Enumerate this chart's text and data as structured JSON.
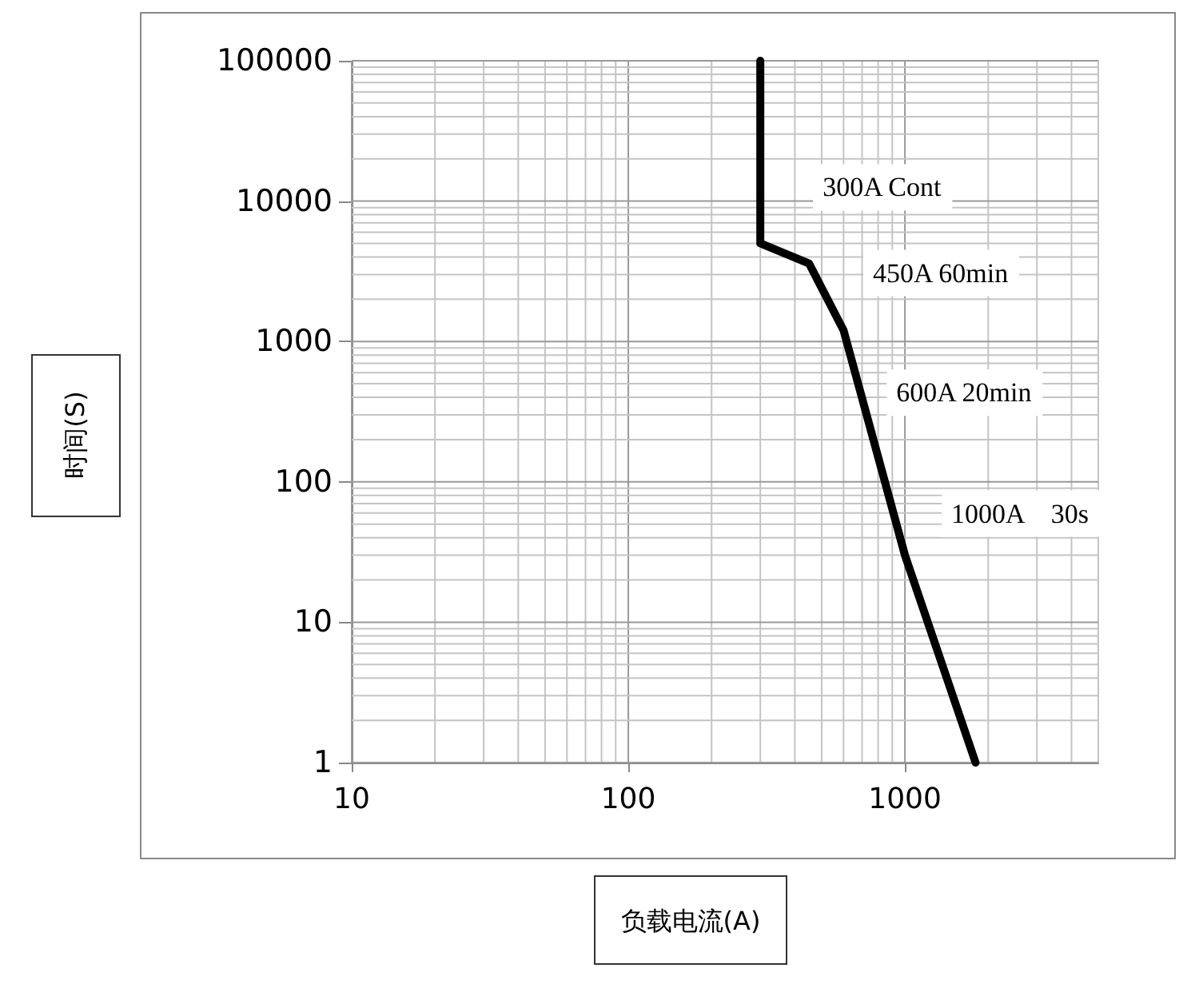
{
  "chart_data": {
    "type": "line",
    "xlabel": "负载电流(A)",
    "ylabel": "时间(S)",
    "x": [
      300,
      300,
      450,
      600,
      1000,
      1800
    ],
    "series": [
      {
        "color": "#000000",
        "values": [
          100000,
          5000,
          3600,
          1200,
          30,
          1
        ]
      }
    ],
    "xlim": [
      10,
      5000
    ],
    "ylim": [
      1,
      100000
    ],
    "xticks": [
      10,
      100,
      1000
    ],
    "yticks": [
      1,
      10,
      100,
      1000,
      10000,
      100000
    ],
    "log": "xy",
    "grid": true,
    "marker": "none",
    "line_style": "solid",
    "annotations": [
      {
        "text": "300A Cont",
        "x": 300,
        "y": 5000
      },
      {
        "text": "450A 60min",
        "x": 450,
        "y": 3600
      },
      {
        "text": "600A 20min",
        "x": 600,
        "y": 1200
      },
      {
        "text": "1000A    30s",
        "x": 1000,
        "y": 30
      }
    ]
  }
}
